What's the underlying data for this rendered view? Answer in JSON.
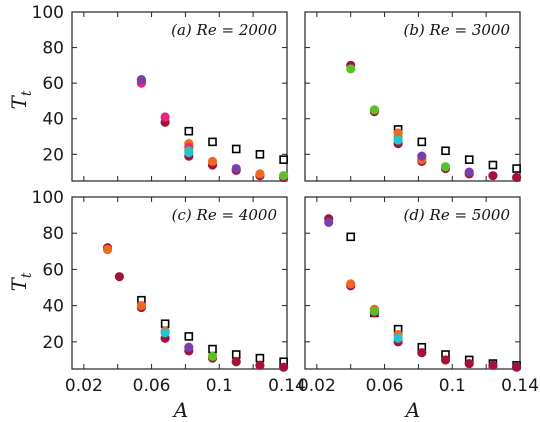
{
  "chart_data": [
    {
      "type": "scatter",
      "panel": "a",
      "label": "(a) Re = 2000",
      "xlabel": "A",
      "ylabel": "T_t",
      "xlim": [
        0.013,
        0.14
      ],
      "ylim": [
        5,
        100
      ],
      "series": [
        {
          "marker": "open-square",
          "x": [
            0.082,
            0.096,
            0.11,
            0.124,
            0.138
          ],
          "y": [
            33,
            27,
            23,
            20,
            17
          ]
        },
        {
          "marker": "filled-circle",
          "color": "#a31238",
          "x": [
            0.054,
            0.068,
            0.082,
            0.096,
            0.11,
            0.124,
            0.138
          ],
          "y": [
            61,
            38,
            19,
            14,
            11,
            8,
            7
          ]
        },
        {
          "marker": "filled-circle",
          "color": "#ee6820",
          "x": [
            0.082,
            0.096,
            0.124
          ],
          "y": [
            26,
            16,
            9
          ]
        },
        {
          "marker": "filled-circle",
          "color": "#e8257d",
          "x": [
            0.054,
            0.068,
            0.082
          ],
          "y": [
            60,
            41,
            24
          ]
        },
        {
          "marker": "filled-circle",
          "color": "#7b3fa6",
          "x": [
            0.054,
            0.11
          ],
          "y": [
            62,
            12
          ]
        },
        {
          "marker": "filled-circle",
          "color": "#5bbf2a",
          "x": [
            0.082,
            0.138
          ],
          "y": [
            22,
            8
          ]
        },
        {
          "marker": "filled-circle",
          "color": "#24c3d6",
          "x": [
            0.082
          ],
          "y": [
            21
          ]
        }
      ]
    },
    {
      "type": "scatter",
      "panel": "b",
      "label": "(b) Re = 3000",
      "xlabel": "A",
      "ylabel": "T_t",
      "xlim": [
        0.013,
        0.14
      ],
      "ylim": [
        5,
        100
      ],
      "series": [
        {
          "marker": "open-square",
          "x": [
            0.068,
            0.082,
            0.096,
            0.11,
            0.124,
            0.138
          ],
          "y": [
            34,
            27,
            22,
            17,
            14,
            12
          ]
        },
        {
          "marker": "filled-circle",
          "color": "#a31238",
          "x": [
            0.04,
            0.054,
            0.068,
            0.082,
            0.096,
            0.11,
            0.124,
            0.138
          ],
          "y": [
            70,
            44,
            26,
            16,
            12,
            9,
            8,
            7
          ]
        },
        {
          "marker": "filled-circle",
          "color": "#5bbf2a",
          "x": [
            0.04,
            0.054,
            0.068,
            0.096
          ],
          "y": [
            68,
            45,
            30,
            13
          ]
        },
        {
          "marker": "filled-circle",
          "color": "#ee6820",
          "x": [
            0.068,
            0.082
          ],
          "y": [
            32,
            17
          ]
        },
        {
          "marker": "filled-circle",
          "color": "#7b3fa6",
          "x": [
            0.082,
            0.11
          ],
          "y": [
            19,
            10
          ]
        },
        {
          "marker": "filled-circle",
          "color": "#24c3d6",
          "x": [
            0.068
          ],
          "y": [
            28
          ]
        }
      ]
    },
    {
      "type": "scatter",
      "panel": "c",
      "label": "(c) Re = 4000",
      "xlabel": "A",
      "ylabel": "T_t",
      "xlim": [
        0.013,
        0.14
      ],
      "ylim": [
        5,
        100
      ],
      "series": [
        {
          "marker": "open-square",
          "x": [
            0.054,
            0.068,
            0.082,
            0.096,
            0.11,
            0.124,
            0.138
          ],
          "y": [
            43,
            30,
            23,
            16,
            13,
            11,
            9
          ]
        },
        {
          "marker": "filled-circle",
          "color": "#a31238",
          "x": [
            0.034,
            0.041,
            0.054,
            0.068,
            0.082,
            0.096,
            0.11,
            0.124,
            0.138
          ],
          "y": [
            72,
            56,
            39,
            22,
            15,
            11,
            9,
            7,
            6
          ]
        },
        {
          "marker": "filled-circle",
          "color": "#ee6820",
          "x": [
            0.034,
            0.054,
            0.068
          ],
          "y": [
            71,
            40,
            26
          ]
        },
        {
          "marker": "filled-circle",
          "color": "#24c3d6",
          "x": [
            0.068
          ],
          "y": [
            25
          ]
        },
        {
          "marker": "filled-circle",
          "color": "#7b3fa6",
          "x": [
            0.082
          ],
          "y": [
            17
          ]
        },
        {
          "marker": "filled-circle",
          "color": "#5bbf2a",
          "x": [
            0.096
          ],
          "y": [
            12
          ]
        }
      ]
    },
    {
      "type": "scatter",
      "panel": "d",
      "label": "(d) Re = 5000",
      "xlabel": "A",
      "ylabel": "T_t",
      "xlim": [
        0.013,
        0.14
      ],
      "ylim": [
        5,
        100
      ],
      "series": [
        {
          "marker": "open-square",
          "x": [
            0.04,
            0.054,
            0.068,
            0.082,
            0.096,
            0.11,
            0.124,
            0.138
          ],
          "y": [
            78,
            36,
            27,
            17,
            13,
            10,
            8,
            7
          ]
        },
        {
          "marker": "filled-circle",
          "color": "#a31238",
          "x": [
            0.027,
            0.04,
            0.054,
            0.068,
            0.082,
            0.096,
            0.11,
            0.124,
            0.138
          ],
          "y": [
            88,
            51,
            36,
            20,
            14,
            10,
            8,
            7,
            6
          ]
        },
        {
          "marker": "filled-circle",
          "color": "#7b3fa6",
          "x": [
            0.027
          ],
          "y": [
            86
          ]
        },
        {
          "marker": "filled-circle",
          "color": "#ee6820",
          "x": [
            0.04,
            0.054,
            0.068
          ],
          "y": [
            52,
            38,
            24
          ]
        },
        {
          "marker": "filled-circle",
          "color": "#5bbf2a",
          "x": [
            0.054
          ],
          "y": [
            37
          ]
        },
        {
          "marker": "filled-circle",
          "color": "#24c3d6",
          "x": [
            0.068
          ],
          "y": [
            22
          ]
        }
      ]
    }
  ],
  "axes": {
    "y_ticks": [
      "20",
      "40",
      "60",
      "80",
      "100"
    ],
    "y_tick_values": [
      20,
      40,
      60,
      80,
      100
    ],
    "x_ticks": [
      "0.02",
      "0.06",
      "0.1",
      "0.14"
    ],
    "x_tick_values": [
      0.02,
      0.06,
      0.1,
      0.14
    ],
    "x_minor_values": [
      0.04,
      0.08,
      0.12
    ],
    "xlabel": "A",
    "ylabel_main": "T",
    "ylabel_sub": "t"
  }
}
